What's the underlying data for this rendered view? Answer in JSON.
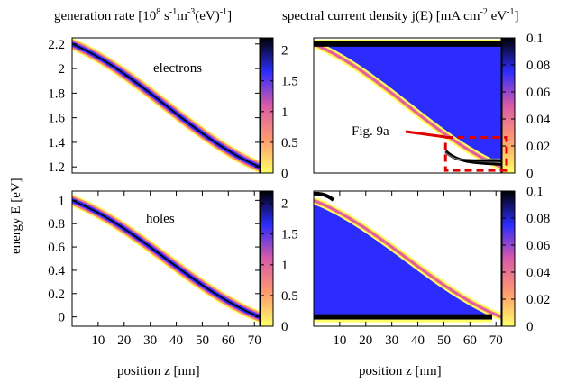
{
  "titles": {
    "left_prefix": "generation rate [10",
    "left_exp1": "8",
    "left_unit1": " s",
    "left_exp2": "-1",
    "left_unit2": "m",
    "left_exp3": "-3",
    "left_unit3": "(eV)",
    "left_exp4": "-1",
    "left_suffix": "",
    "right_prefix": "spectral current density j(E) [mA cm",
    "right_exp1": "-2",
    "right_unit1": " eV",
    "right_exp2": "-1",
    "right_suffix": "]",
    "bracket_close": "]"
  },
  "ylabel": "energy E [eV]",
  "xlabel_left": "position z [nm]",
  "xlabel_right": "position z [nm]",
  "annotations": {
    "electrons": "electrons",
    "holes": "holes",
    "fig_ref": "Fig. 9a"
  },
  "colors": {
    "palette_low": "#ffff66",
    "palette_mid1": "#ff8a6b",
    "palette_mid2": "#d85aa8",
    "palette_mid3": "#2c2cff",
    "palette_high": "#000000",
    "annotation_red": "#e00000"
  },
  "chart_data": [
    {
      "type": "heatmap",
      "panel": "top-left",
      "annotation": "electrons",
      "xlim": [
        0,
        72
      ],
      "ylim": [
        1.15,
        2.25
      ],
      "yticks": [
        1.2,
        1.4,
        1.6,
        1.8,
        2.0,
        2.2
      ],
      "ytick_labels": [
        "1.2",
        "1.4",
        "1.6",
        "1.8",
        "2",
        "2.2"
      ],
      "colorbar": {
        "range": [
          0,
          2.2
        ],
        "ticks": [
          0,
          0.5,
          1,
          1.5,
          2
        ],
        "labels": [
          "0",
          "0.5",
          "1",
          "1.5",
          "2"
        ]
      },
      "band_edge": {
        "x": [
          0,
          8,
          64,
          72
        ],
        "y": [
          2.2,
          2.16,
          1.24,
          1.2
        ]
      }
    },
    {
      "type": "heatmap",
      "panel": "top-right",
      "annotation": "Fig. 9a",
      "xlim": [
        0,
        72
      ],
      "ylim": [
        1.15,
        2.25
      ],
      "colorbar": {
        "range": [
          0,
          0.1
        ],
        "ticks": [
          0,
          0.02,
          0.04,
          0.06,
          0.08,
          0.1
        ],
        "labels": [
          "0",
          "0.02",
          "0.04",
          "0.06",
          "0.08",
          "0.1"
        ]
      },
      "contact_level": 2.2,
      "band_edge": {
        "x": [
          0,
          8,
          64,
          72
        ],
        "y": [
          2.2,
          2.16,
          1.24,
          1.2
        ]
      },
      "zoom_box": {
        "x": [
          52,
          72
        ],
        "y": [
          1.2,
          1.44
        ]
      }
    },
    {
      "type": "heatmap",
      "panel": "bottom-left",
      "annotation": "holes",
      "xlim": [
        0,
        72
      ],
      "ylim": [
        -0.08,
        1.08
      ],
      "xticks": [
        10,
        20,
        30,
        40,
        50,
        60,
        70
      ],
      "xtick_labels": [
        "10",
        "20",
        "30",
        "40",
        "50",
        "60",
        "70"
      ],
      "yticks": [
        0,
        0.2,
        0.4,
        0.6,
        0.8,
        1.0
      ],
      "ytick_labels": [
        "0",
        "0.2",
        "0.4",
        "0.6",
        "0.8",
        "1"
      ],
      "colorbar": {
        "range": [
          0,
          2.2
        ],
        "ticks": [
          0,
          0.5,
          1,
          1.5,
          2
        ],
        "labels": [
          "0",
          "0.5",
          "1",
          "1.5",
          "2"
        ]
      },
      "band_edge": {
        "x": [
          0,
          8,
          64,
          72
        ],
        "y": [
          1.0,
          0.96,
          0.04,
          0.0
        ]
      }
    },
    {
      "type": "heatmap",
      "panel": "bottom-right",
      "xlim": [
        0,
        72
      ],
      "ylim": [
        -0.08,
        1.08
      ],
      "xticks": [
        10,
        20,
        30,
        40,
        50,
        60,
        70
      ],
      "xtick_labels": [
        "10",
        "20",
        "30",
        "40",
        "50",
        "60",
        "70"
      ],
      "colorbar": {
        "range": [
          0,
          0.1
        ],
        "ticks": [
          0,
          0.02,
          0.04,
          0.06,
          0.08,
          0.1
        ],
        "labels": [
          "0",
          "0.02",
          "0.04",
          "0.06",
          "0.08",
          "0.1"
        ]
      },
      "contact_level": 0.0,
      "band_edge": {
        "x": [
          0,
          8,
          64,
          72
        ],
        "y": [
          1.0,
          0.96,
          0.04,
          0.0
        ]
      }
    }
  ]
}
